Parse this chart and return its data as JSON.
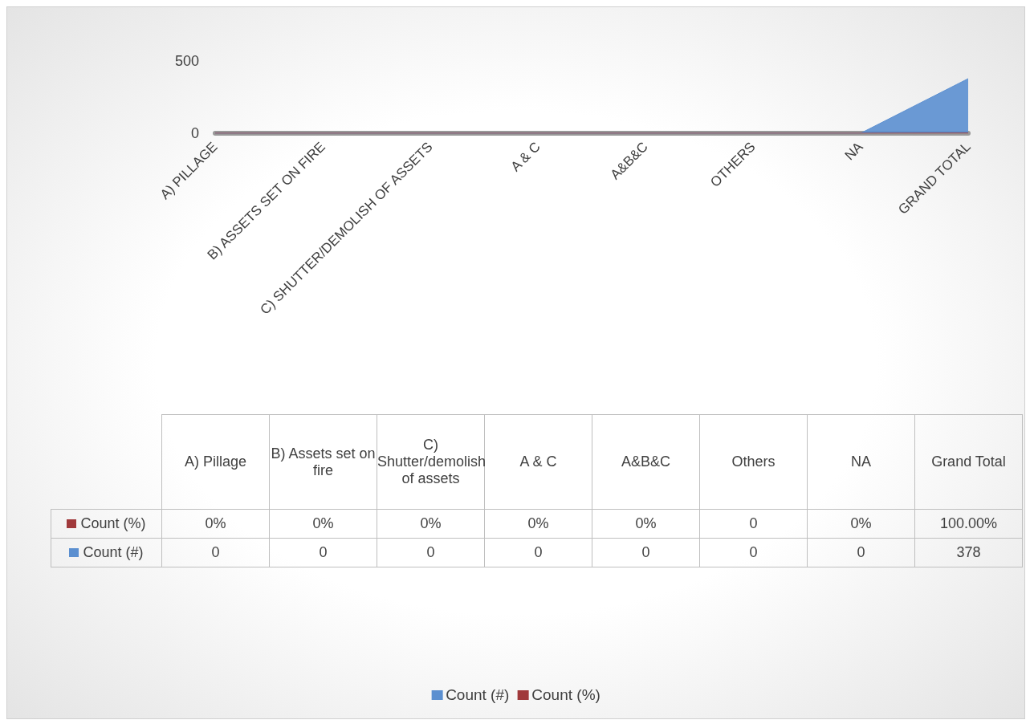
{
  "chart_data": {
    "type": "area",
    "categories": [
      "A) PILLAGE",
      "B) ASSETS SET ON FIRE",
      "C) SHUTTER/DEMOLISH OF ASSETS",
      "A & C",
      "A&B&C",
      "OTHERS",
      "NA",
      "GRAND TOTAL"
    ],
    "series": [
      {
        "name": "Count (#)",
        "color": "#5b8fd0",
        "values": [
          0,
          0,
          0,
          0,
          0,
          0,
          0,
          378
        ],
        "value_labels": [
          "0",
          "0",
          "0",
          "0",
          "0",
          "0",
          "0",
          "378"
        ]
      },
      {
        "name": "Count (%)",
        "color": "#a0393b",
        "values": [
          0,
          0,
          0,
          0,
          0,
          0,
          0,
          1
        ],
        "value_labels": [
          "0%",
          "0%",
          "0%",
          "0%",
          "0%",
          "0",
          "0%",
          "100.00%"
        ]
      }
    ],
    "annotations": [
      "A) Pillage",
      "B) Assets set on fire",
      "C) Shutter/demolish of assets",
      "A & C",
      "A&B&C",
      "Others",
      "NA",
      "Grand Total"
    ],
    "ylim": [
      0,
      500
    ],
    "yticks": [
      0,
      500
    ],
    "grid": false,
    "legend": "bottom"
  }
}
